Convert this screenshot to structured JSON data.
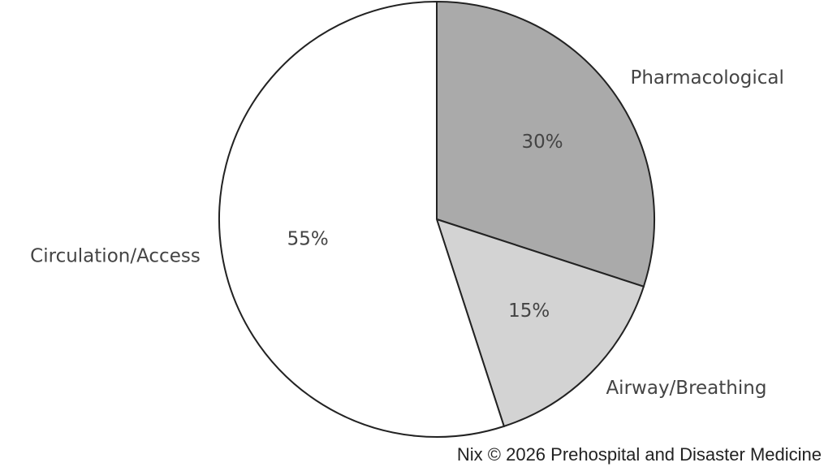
{
  "chart_data": {
    "type": "pie",
    "categories": [
      "Pharmacological",
      "Airway/Breathing",
      "Circulation/Access"
    ],
    "values": [
      30,
      15,
      55
    ],
    "value_labels": [
      "30%",
      "15%",
      "55%"
    ],
    "colors": [
      "#aaaaaa",
      "#d3d3d3",
      "#ffffff"
    ]
  },
  "credit": "Nix © 2026 Prehospital and Disaster Medicine"
}
